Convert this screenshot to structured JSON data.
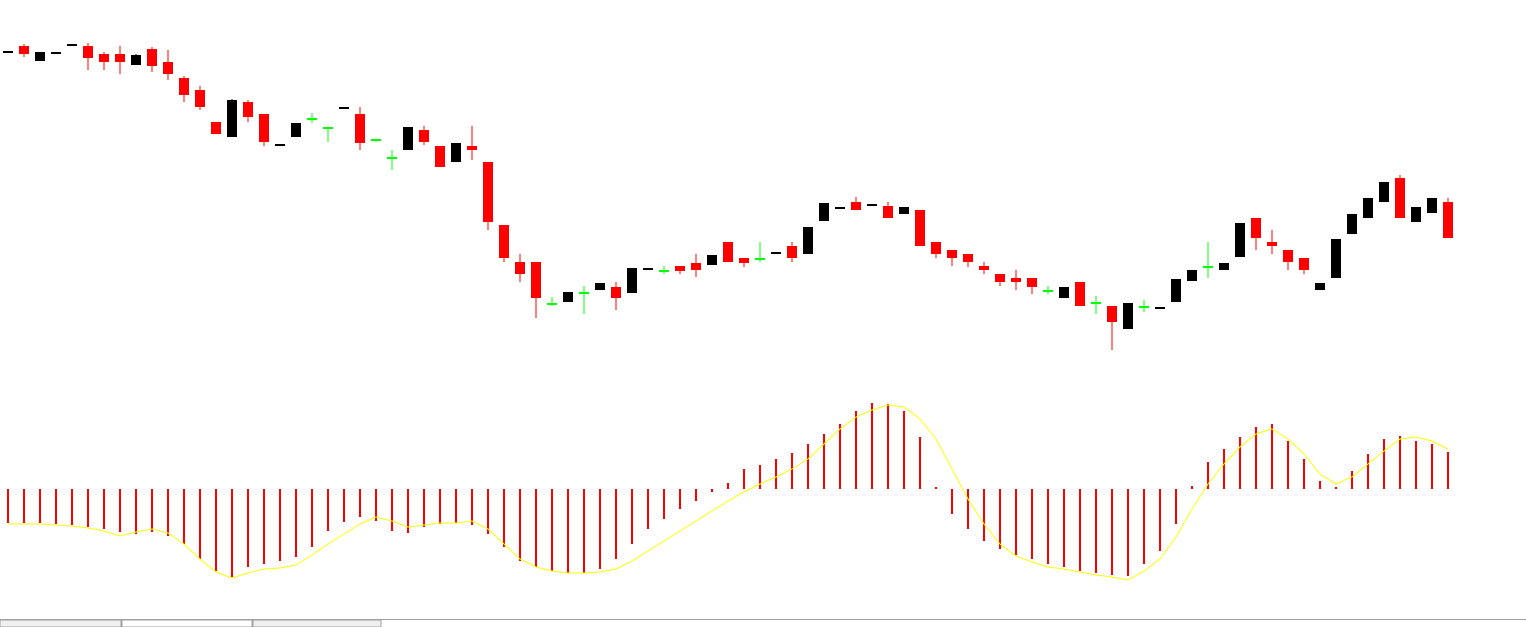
{
  "chart_data": [
    {
      "type": "candlestick",
      "open": [
        307,
        314,
        299,
        307,
        315,
        314,
        306,
        306,
        295,
        311,
        298,
        282,
        270,
        238,
        223,
        258,
        246,
        215,
        223,
        242,
        233,
        252,
        246,
        221,
        203,
        210,
        230,
        214,
        198,
        214,
        198,
        135,
        98,
        98,
        57,
        58,
        68,
        70,
        73,
        67,
        91,
        90,
        94,
        97,
        95,
        118,
        102,
        102,
        107,
        114,
        106,
        139,
        152,
        158,
        155,
        154,
        146,
        150,
        118,
        110,
        106,
        94,
        86,
        82,
        82,
        70,
        62,
        78,
        58,
        54,
        31,
        54,
        52,
        58,
        79,
        94,
        90,
        103,
        142,
        118,
        110,
        102,
        70,
        82,
        126,
        142,
        158,
        182,
        138,
        147,
        158
      ],
      "close": [
        309,
        306,
        308,
        308,
        316,
        302,
        298,
        298,
        305,
        294,
        286,
        265,
        253,
        226,
        260,
        243,
        218,
        216,
        237,
        242,
        233,
        253,
        217,
        221,
        203,
        233,
        218,
        193,
        217,
        210,
        138,
        102,
        86,
        62,
        57,
        68,
        68,
        77,
        62,
        92,
        92,
        90,
        89,
        90,
        105,
        98,
        97,
        102,
        108,
        102,
        133,
        157,
        153,
        150,
        156,
        142,
        153,
        114,
        106,
        102,
        98,
        90,
        78,
        78,
        73,
        70,
        73,
        54,
        58,
        38,
        57,
        54,
        53,
        81,
        90,
        94,
        97,
        137,
        122,
        114,
        98,
        90,
        77,
        121,
        146,
        162,
        178,
        142,
        153,
        162,
        122
      ],
      "high": [
        309,
        316,
        308,
        308,
        316,
        317,
        308,
        314,
        306,
        313,
        310,
        284,
        274,
        238,
        261,
        260,
        246,
        216,
        237,
        247,
        233,
        253,
        253,
        221,
        210,
        233,
        234,
        214,
        217,
        234,
        198,
        135,
        106,
        98,
        63,
        68,
        74,
        77,
        78,
        92,
        92,
        94,
        94,
        106,
        105,
        118,
        102,
        118,
        108,
        118,
        133,
        157,
        153,
        163,
        156,
        158,
        153,
        150,
        118,
        110,
        106,
        98,
        86,
        90,
        82,
        74,
        73,
        78,
        64,
        54,
        57,
        60,
        53,
        81,
        90,
        118,
        97,
        137,
        142,
        130,
        110,
        102,
        77,
        121,
        146,
        162,
        178,
        185,
        153,
        162,
        162
      ],
      "low": [
        307,
        303,
        299,
        307,
        315,
        290,
        290,
        286,
        295,
        288,
        280,
        258,
        250,
        226,
        223,
        238,
        214,
        215,
        223,
        237,
        218,
        252,
        210,
        218,
        190,
        210,
        215,
        193,
        198,
        200,
        130,
        98,
        78,
        42,
        54,
        58,
        46,
        70,
        50,
        67,
        91,
        86,
        86,
        83,
        95,
        98,
        93,
        98,
        107,
        98,
        106,
        139,
        152,
        150,
        155,
        142,
        146,
        114,
        102,
        94,
        93,
        86,
        74,
        70,
        66,
        66,
        62,
        54,
        46,
        10,
        31,
        48,
        52,
        58,
        79,
        82,
        90,
        103,
        110,
        106,
        90,
        86,
        70,
        82,
        126,
        142,
        158,
        142,
        138,
        147,
        122
      ],
      "up_color": "#000000",
      "down_color": "#ff0000",
      "doji_color": "#00ff00",
      "ylim": [
        0,
        360
      ]
    },
    {
      "type": "macd",
      "values": [
        -34,
        -34,
        -34,
        -35,
        -36,
        -38,
        -40,
        -43,
        -45,
        -43,
        -47,
        -55,
        -70,
        -82,
        -88,
        -78,
        -75,
        -72,
        -68,
        -58,
        -42,
        -33,
        -28,
        -32,
        -42,
        -44,
        -38,
        -35,
        -34,
        -36,
        -45,
        -58,
        -72,
        -78,
        -82,
        -84,
        -84,
        -80,
        -70,
        -55,
        -40,
        -30,
        -20,
        -12,
        -3,
        6,
        20,
        24,
        30,
        36,
        45,
        55,
        65,
        78,
        86,
        85,
        78,
        52,
        2,
        -25,
        -40,
        -52,
        -60,
        -66,
        -70,
        -75,
        -78,
        -82,
        -84,
        -86,
        -87,
        -75,
        -62,
        -35,
        3,
        27,
        40,
        52,
        62,
        65,
        48,
        30,
        8,
        2,
        18,
        35,
        50,
        53,
        48,
        45,
        37
      ],
      "color": "#ff0000",
      "signal_values": [
        -35,
        -35,
        -35,
        -36,
        -37,
        -39,
        -42,
        -47,
        -43,
        -40,
        -44,
        -55,
        -70,
        -83,
        -89,
        -84,
        -80,
        -79,
        -76,
        -66,
        -55,
        -45,
        -35,
        -28,
        -32,
        -38,
        -36,
        -34,
        -34,
        -32,
        -40,
        -55,
        -70,
        -78,
        -82,
        -84,
        -84,
        -83,
        -80,
        -72,
        -62,
        -52,
        -42,
        -32,
        -22,
        -12,
        -3,
        5,
        12,
        20,
        30,
        45,
        60,
        72,
        79,
        84,
        82,
        70,
        50,
        20,
        -10,
        -35,
        -55,
        -67,
        -73,
        -78,
        -80,
        -83,
        -86,
        -88,
        -91,
        -82,
        -70,
        -48,
        -20,
        5,
        25,
        42,
        55,
        60,
        50,
        35,
        15,
        5,
        12,
        25,
        38,
        50,
        52,
        48,
        40
      ],
      "signal_color": "#ffff00",
      "ylim": [
        -130,
        100
      ]
    }
  ]
}
